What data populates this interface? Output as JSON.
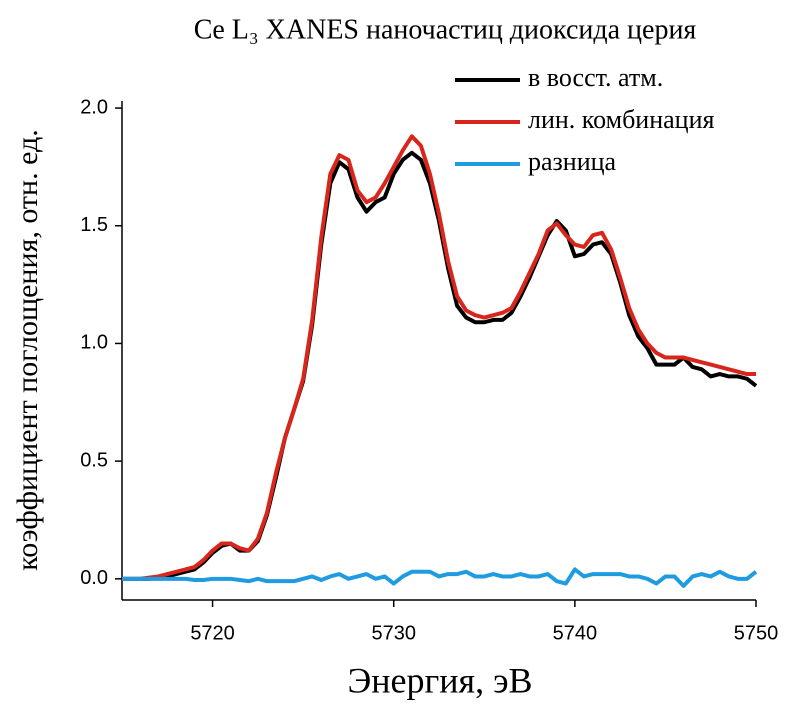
{
  "chart_data": {
    "type": "line",
    "title": "Ce L₃ XANES наночастиц диоксида церия",
    "xlabel": "Энергия, эВ",
    "ylabel": "коэффициент поглощения, отн. ед.",
    "x": [
      5715,
      5715.5,
      5716,
      5716.5,
      5717,
      5717.5,
      5718,
      5718.5,
      5719,
      5719.5,
      5720,
      5720.5,
      5721,
      5721.5,
      5722,
      5722.5,
      5723,
      5723.5,
      5724,
      5724.5,
      5725,
      5725.5,
      5726,
      5726.5,
      5727,
      5727.5,
      5728,
      5728.5,
      5729,
      5729.5,
      5730,
      5730.5,
      5731,
      5731.5,
      5732,
      5732.5,
      5733,
      5733.5,
      5734,
      5734.5,
      5735,
      5735.5,
      5736,
      5736.5,
      5737,
      5737.5,
      5738,
      5738.5,
      5739,
      5739.5,
      5740,
      5740.5,
      5741,
      5741.5,
      5742,
      5742.5,
      5743,
      5743.5,
      5744,
      5744.5,
      5745,
      5745.5,
      5746,
      5746.5,
      5747,
      5747.5,
      5748,
      5748.5,
      5749,
      5749.5,
      5750
    ],
    "series": [
      {
        "name": "в восст. атм.",
        "color": "#000000",
        "values": [
          0,
          0,
          0,
          0,
          0.005,
          0.01,
          0.02,
          0.03,
          0.04,
          0.07,
          0.11,
          0.14,
          0.15,
          0.12,
          0.12,
          0.16,
          0.27,
          0.43,
          0.6,
          0.72,
          0.84,
          1.08,
          1.42,
          1.68,
          1.77,
          1.74,
          1.62,
          1.56,
          1.6,
          1.62,
          1.72,
          1.78,
          1.81,
          1.78,
          1.68,
          1.52,
          1.32,
          1.16,
          1.11,
          1.09,
          1.09,
          1.1,
          1.1,
          1.13,
          1.2,
          1.28,
          1.37,
          1.46,
          1.52,
          1.48,
          1.37,
          1.38,
          1.42,
          1.43,
          1.38,
          1.26,
          1.12,
          1.03,
          0.98,
          0.91,
          0.91,
          0.91,
          0.94,
          0.9,
          0.89,
          0.86,
          0.87,
          0.86,
          0.86,
          0.85,
          0.82
        ]
      },
      {
        "name": "лин. комбинация",
        "color": "#d9261c",
        "values": [
          0,
          0,
          0,
          0.005,
          0.01,
          0.02,
          0.03,
          0.04,
          0.05,
          0.08,
          0.12,
          0.15,
          0.15,
          0.13,
          0.12,
          0.17,
          0.28,
          0.45,
          0.6,
          0.72,
          0.85,
          1.1,
          1.45,
          1.72,
          1.8,
          1.78,
          1.65,
          1.6,
          1.62,
          1.68,
          1.75,
          1.82,
          1.88,
          1.84,
          1.72,
          1.55,
          1.35,
          1.2,
          1.14,
          1.12,
          1.11,
          1.12,
          1.13,
          1.15,
          1.22,
          1.3,
          1.38,
          1.48,
          1.51,
          1.46,
          1.42,
          1.41,
          1.46,
          1.47,
          1.4,
          1.28,
          1.15,
          1.06,
          1.0,
          0.96,
          0.94,
          0.94,
          0.94,
          0.93,
          0.92,
          0.91,
          0.9,
          0.89,
          0.88,
          0.87,
          0.87
        ]
      },
      {
        "name": "разница",
        "color": "#1f9be0",
        "values": [
          0,
          0,
          0,
          0,
          0,
          0,
          0,
          0,
          -0.005,
          -0.005,
          0,
          0,
          0,
          -0.005,
          -0.01,
          0,
          -0.01,
          -0.01,
          -0.01,
          -0.01,
          0,
          0.01,
          -0.005,
          0.01,
          0.02,
          0,
          0.01,
          0.02,
          0,
          0.01,
          -0.02,
          0.01,
          0.03,
          0.03,
          0.03,
          0.01,
          0.02,
          0.02,
          0.03,
          0.01,
          0.01,
          0.02,
          0.01,
          0.01,
          0.02,
          0.01,
          0.01,
          0.02,
          -0.01,
          -0.02,
          0.04,
          0.01,
          0.02,
          0.02,
          0.02,
          0.02,
          0.01,
          0.01,
          0,
          -0.02,
          0.01,
          0.01,
          -0.03,
          0.01,
          0.02,
          0.01,
          0.03,
          0.01,
          0,
          0,
          0.03
        ]
      }
    ],
    "xlim": [
      5715,
      5750
    ],
    "xticks": [
      5720,
      5730,
      5740,
      5750
    ],
    "ylim": [
      -0.09,
      2.03
    ],
    "yticks": [
      {
        "value": 0,
        "label": "0.0"
      },
      0.5,
      {
        "value": 1,
        "label": "1.0"
      },
      1.5,
      {
        "value": 2,
        "label": "2.0"
      }
    ],
    "grid": false,
    "legend": "upper right"
  }
}
